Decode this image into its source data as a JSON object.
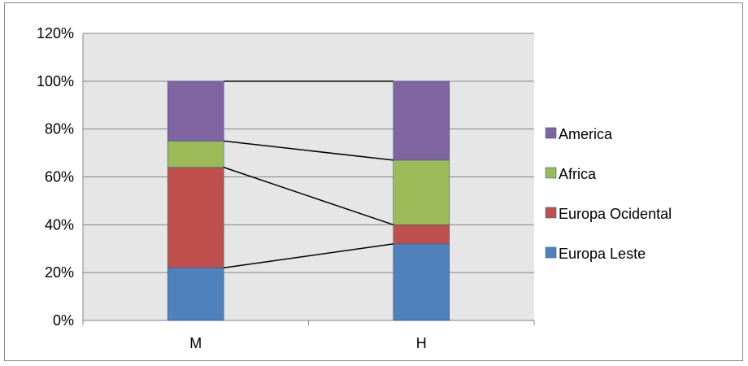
{
  "chart_data": {
    "type": "bar",
    "stacked": true,
    "categories": [
      "M",
      "H"
    ],
    "series": [
      {
        "name": "Europa Leste",
        "values": [
          22,
          32
        ],
        "color": "#4f81bd"
      },
      {
        "name": "Europa Ocidental",
        "values": [
          42,
          8
        ],
        "color": "#c0504d"
      },
      {
        "name": "Africa",
        "values": [
          11,
          27
        ],
        "color": "#9bbb59"
      },
      {
        "name": "America",
        "values": [
          25,
          33
        ],
        "color": "#8064a2"
      }
    ],
    "ylim": [
      0,
      120
    ],
    "y_ticks": [
      "0%",
      "20%",
      "40%",
      "60%",
      "80%",
      "100%",
      "120%"
    ],
    "series_lines": true,
    "grid": true,
    "plot_background": "#e6e6e6",
    "legend_position": "right",
    "title": "",
    "xlabel": "",
    "ylabel": ""
  }
}
